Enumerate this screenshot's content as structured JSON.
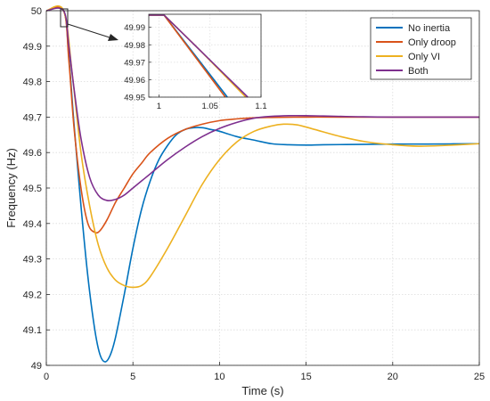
{
  "chart_data": {
    "type": "line",
    "xlabel": "Time (s)",
    "ylabel": "Frequency (Hz)",
    "xlim": [
      0,
      25
    ],
    "ylim": [
      49,
      50
    ],
    "xticks": [
      0,
      5,
      10,
      15,
      20,
      25
    ],
    "yticks": [
      49,
      49.1,
      49.2,
      49.3,
      49.4,
      49.5,
      49.6,
      49.7,
      49.8,
      49.9,
      50
    ],
    "xtick_labels": [
      "0",
      "5",
      "10",
      "15",
      "20",
      "25"
    ],
    "ytick_labels": [
      "49",
      "49.1",
      "49.2",
      "49.3",
      "49.4",
      "49.5",
      "49.6",
      "49.7",
      "49.8",
      "49.9",
      "50"
    ],
    "grid": true,
    "legend_position": "top-right",
    "series": [
      {
        "name": "No inertia",
        "color": "#0072BD",
        "x": [
          0,
          1,
          1.3,
          1.6,
          2,
          2.4,
          2.8,
          3.1,
          3.4,
          3.7,
          4,
          4.5,
          5,
          5.5,
          6,
          6.5,
          7,
          7.5,
          8,
          8.5,
          9,
          9.5,
          10,
          11,
          12,
          13,
          14,
          15,
          16,
          18,
          20,
          22,
          25
        ],
        "y": [
          50,
          50,
          49.87,
          49.68,
          49.45,
          49.25,
          49.1,
          49.03,
          49.01,
          49.03,
          49.08,
          49.2,
          49.33,
          49.44,
          49.52,
          49.58,
          49.62,
          49.65,
          49.665,
          49.67,
          49.67,
          49.665,
          49.66,
          49.645,
          49.635,
          49.625,
          49.622,
          49.621,
          49.622,
          49.623,
          49.624,
          49.624,
          49.625
        ]
      },
      {
        "name": "Only droop",
        "color": "#D95319",
        "x": [
          0,
          1,
          1.3,
          1.6,
          2,
          2.4,
          2.8,
          3.1,
          3.5,
          4,
          4.5,
          5,
          5.5,
          6,
          7,
          8,
          9,
          10,
          11,
          12,
          13,
          15,
          17,
          20,
          25
        ],
        "y": [
          50,
          50,
          49.86,
          49.67,
          49.5,
          49.4,
          49.375,
          49.38,
          49.41,
          49.46,
          49.5,
          49.54,
          49.57,
          49.6,
          49.64,
          49.665,
          49.68,
          49.69,
          49.695,
          49.698,
          49.699,
          49.7,
          49.7,
          49.7,
          49.7
        ]
      },
      {
        "name": "Only VI",
        "color": "#EDB120",
        "x": [
          0,
          1,
          1.5,
          2,
          2.5,
          3,
          3.5,
          4,
          4.5,
          5,
          5.5,
          6,
          7,
          8,
          9,
          10,
          11,
          12,
          13,
          13.7,
          14.5,
          15.5,
          17,
          18.5,
          20,
          21.5,
          23,
          25
        ],
        "y": [
          50,
          50,
          49.82,
          49.6,
          49.45,
          49.34,
          49.275,
          49.24,
          49.225,
          49.22,
          49.225,
          49.25,
          49.33,
          49.42,
          49.51,
          49.58,
          49.63,
          49.66,
          49.675,
          49.68,
          49.678,
          49.665,
          49.645,
          49.63,
          49.622,
          49.618,
          49.62,
          49.625
        ]
      },
      {
        "name": "Both",
        "color": "#7E2F8E",
        "x": [
          0,
          1,
          1.3,
          1.6,
          2,
          2.5,
          3,
          3.5,
          4,
          4.5,
          5,
          5.5,
          6,
          7,
          8,
          9,
          10,
          11,
          12,
          13,
          14,
          15,
          16,
          18,
          20,
          25
        ],
        "y": [
          50,
          50,
          49.9,
          49.78,
          49.64,
          49.53,
          49.48,
          49.465,
          49.468,
          49.48,
          49.5,
          49.52,
          49.54,
          49.58,
          49.615,
          49.645,
          49.668,
          49.685,
          49.697,
          49.702,
          49.704,
          49.704,
          49.703,
          49.701,
          49.7,
          49.7
        ]
      }
    ],
    "inset": {
      "xlim": [
        0.99,
        1.1
      ],
      "ylim": [
        49.95,
        49.9975
      ],
      "xticks": [
        1,
        1.05,
        1.1
      ],
      "yticks": [
        49.95,
        49.96,
        49.97,
        49.98,
        49.99
      ],
      "xtick_labels": [
        "1",
        "1.05",
        "1.1"
      ],
      "ytick_labels": [
        "49.95",
        "49.96",
        "49.97",
        "49.98",
        "49.99"
      ],
      "series": [
        {
          "name": "No inertia",
          "color": "#0072BD",
          "x": [
            0.99,
            1.0,
            1.005,
            1.067
          ],
          "y": [
            49.997,
            49.997,
            49.997,
            49.95
          ]
        },
        {
          "name": "Only droop",
          "color": "#D95319",
          "x": [
            0.99,
            1.0,
            1.005,
            1.065
          ],
          "y": [
            49.997,
            49.997,
            49.997,
            49.95
          ]
        },
        {
          "name": "Only VI",
          "color": "#EDB120",
          "x": [
            0.99,
            1.0,
            1.005,
            1.04,
            1.085
          ],
          "y": [
            49.997,
            49.997,
            49.997,
            49.977,
            49.95
          ]
        },
        {
          "name": "Both",
          "color": "#7E2F8E",
          "x": [
            0.99,
            1.0,
            1.005,
            1.04,
            1.087
          ],
          "y": [
            49.997,
            49.997,
            49.997,
            49.977,
            49.95
          ]
        }
      ]
    }
  }
}
